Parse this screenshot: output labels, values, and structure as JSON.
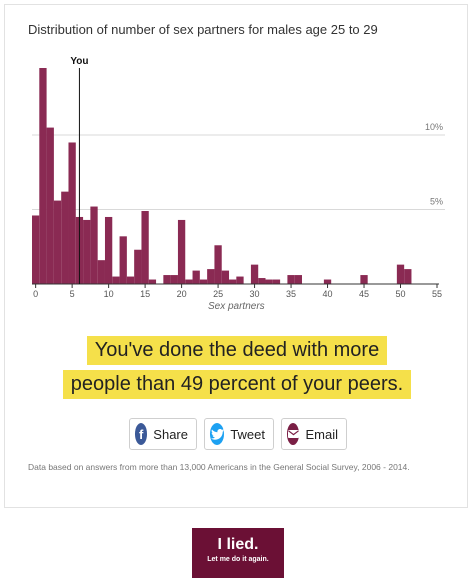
{
  "title": "Distribution of number of sex partners for males age 25 to 29",
  "chart_data": {
    "type": "bar",
    "title": "Distribution of number of sex partners for males age 25 to 29",
    "xlabel": "Sex partners",
    "ylabel": "",
    "x_ticks": [
      0,
      5,
      10,
      15,
      20,
      25,
      30,
      35,
      40,
      45,
      50,
      55
    ],
    "y_ticks": [
      {
        "value": 5,
        "label": "5%"
      },
      {
        "value": 10,
        "label": "10%"
      }
    ],
    "xlim": [
      -0.5,
      55
    ],
    "ylim": [
      0,
      14.5
    ],
    "grid": true,
    "marker": {
      "x": 6,
      "label": "You"
    },
    "color": "#8a2a53",
    "x": [
      0,
      1,
      2,
      3,
      4,
      5,
      6,
      7,
      8,
      9,
      10,
      11,
      12,
      13,
      14,
      15,
      16,
      18,
      19,
      20,
      21,
      22,
      23,
      24,
      25,
      26,
      27,
      28,
      30,
      31,
      32,
      33,
      35,
      36,
      40,
      45,
      50,
      51
    ],
    "values": [
      4.6,
      14.5,
      10.5,
      5.6,
      6.2,
      9.5,
      4.5,
      4.3,
      5.2,
      1.6,
      4.5,
      0.5,
      3.2,
      0.5,
      2.3,
      4.9,
      0.3,
      0.6,
      0.6,
      4.3,
      0.3,
      0.9,
      0.3,
      1.0,
      2.6,
      0.9,
      0.3,
      0.5,
      1.3,
      0.4,
      0.3,
      0.3,
      0.6,
      0.6,
      0.3,
      0.6,
      1.3,
      1.0
    ]
  },
  "headline": {
    "line1": "You've done the deed with more",
    "line2": "people than 49 percent of your peers."
  },
  "buttons": {
    "share": "Share",
    "tweet": "Tweet",
    "email": "Email"
  },
  "icons": {
    "share": "facebook-icon",
    "tweet": "twitter-icon",
    "email": "envelope-icon"
  },
  "footnote": "Data based on answers from more than 13,000 Americans in the General Social Survey, 2006 - 2014.",
  "lied_button": {
    "line1": "I lied.",
    "line2": "Let me do it again."
  },
  "colors": {
    "bar": "#8a2a53",
    "highlight": "#f5e04a",
    "lied_bg": "#6b1035",
    "facebook": "#3b5998",
    "twitter": "#1da1f2",
    "email": "#7a1f45"
  }
}
